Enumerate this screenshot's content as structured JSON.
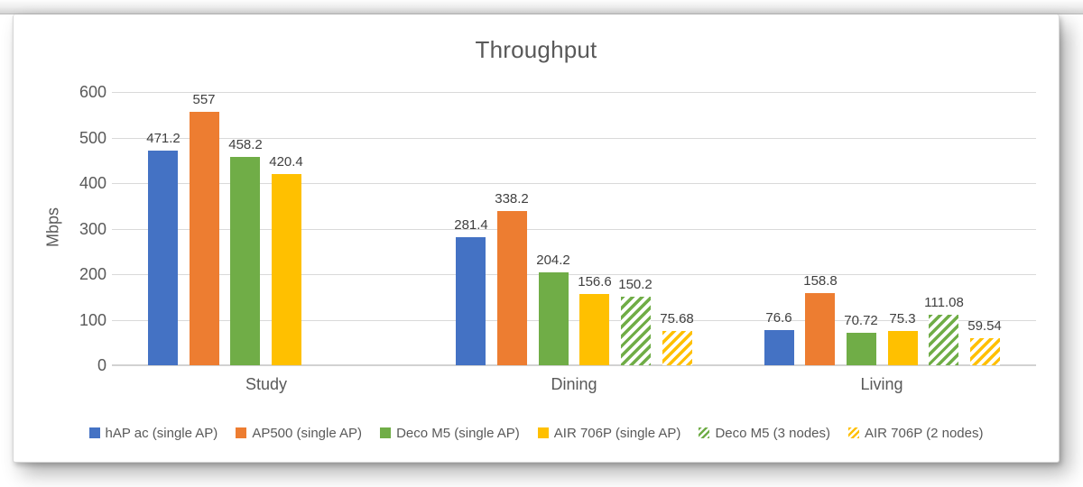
{
  "chart_data": {
    "type": "bar",
    "title": "Throughput",
    "ylabel": "Mbps",
    "xlabel": "",
    "categories": [
      "Study",
      "Dining",
      "Living"
    ],
    "yaxis": {
      "min": 0,
      "max": 600,
      "ticks": [
        0,
        100,
        200,
        300,
        400,
        500,
        600
      ]
    },
    "gridlines": true,
    "legend_position": "bottom",
    "data_labels_shown": true,
    "series": [
      {
        "name": "hAP ac (single AP)",
        "color": "#4472C4",
        "fill": "solid",
        "values": [
          "471.2",
          "281.4",
          "76.6"
        ]
      },
      {
        "name": "AP500 (single AP)",
        "color": "#ED7D31",
        "fill": "solid",
        "values": [
          "557",
          "338.2",
          "158.8"
        ]
      },
      {
        "name": "Deco M5 (single AP)",
        "color": "#70AD47",
        "fill": "solid",
        "values": [
          "458.2",
          "204.2",
          "70.72"
        ]
      },
      {
        "name": "AIR 706P (single AP)",
        "color": "#FFC000",
        "fill": "solid",
        "values": [
          "420.4",
          "156.6",
          "75.3"
        ]
      },
      {
        "name": "Deco M5 (3 nodes)",
        "color": "#70AD47",
        "fill": "hatch",
        "values": [
          null,
          "150.2",
          "111.08"
        ]
      },
      {
        "name": "AIR 706P (2 nodes)",
        "color": "#FFC000",
        "fill": "hatch",
        "values": [
          null,
          "75.68",
          "59.54"
        ]
      }
    ]
  }
}
